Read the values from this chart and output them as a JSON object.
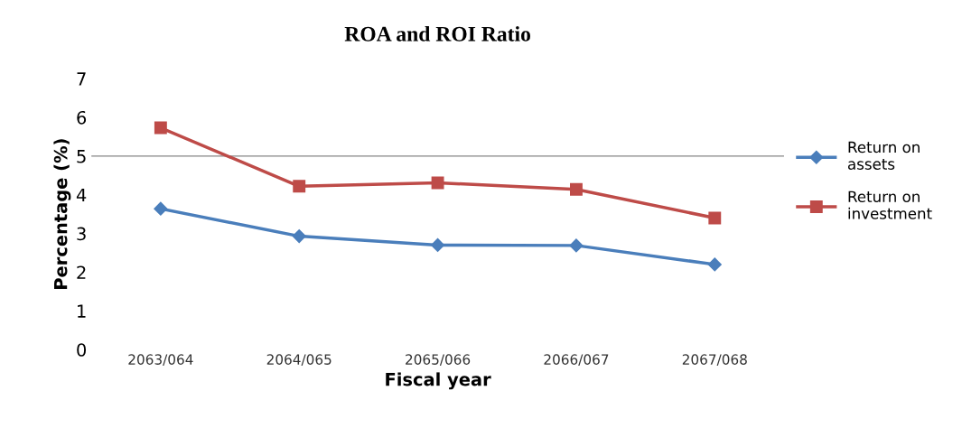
{
  "chart_data": {
    "type": "line",
    "title": "ROA and ROI Ratio",
    "xlabel": "Fiscal year",
    "ylabel": "Percentage (%)",
    "categories": [
      "2063/064",
      "2064/065",
      "2065/066",
      "2066/067",
      "2067/068"
    ],
    "series": [
      {
        "name": "Return on assets",
        "color": "#4a7ebb",
        "marker": "diamond",
        "values": [
          3.64,
          2.93,
          2.7,
          2.69,
          2.2
        ]
      },
      {
        "name": "Return on investment",
        "color": "#be4b48",
        "marker": "square",
        "values": [
          5.73,
          4.22,
          4.31,
          4.14,
          3.4
        ]
      }
    ],
    "ylim": [
      0,
      7
    ],
    "yticks": [
      0,
      1,
      2,
      3,
      4,
      5,
      6,
      7
    ],
    "grid": false,
    "legend": "right",
    "ref_lines": [
      {
        "axis": "y",
        "value": 5,
        "color": "#868686"
      }
    ]
  }
}
